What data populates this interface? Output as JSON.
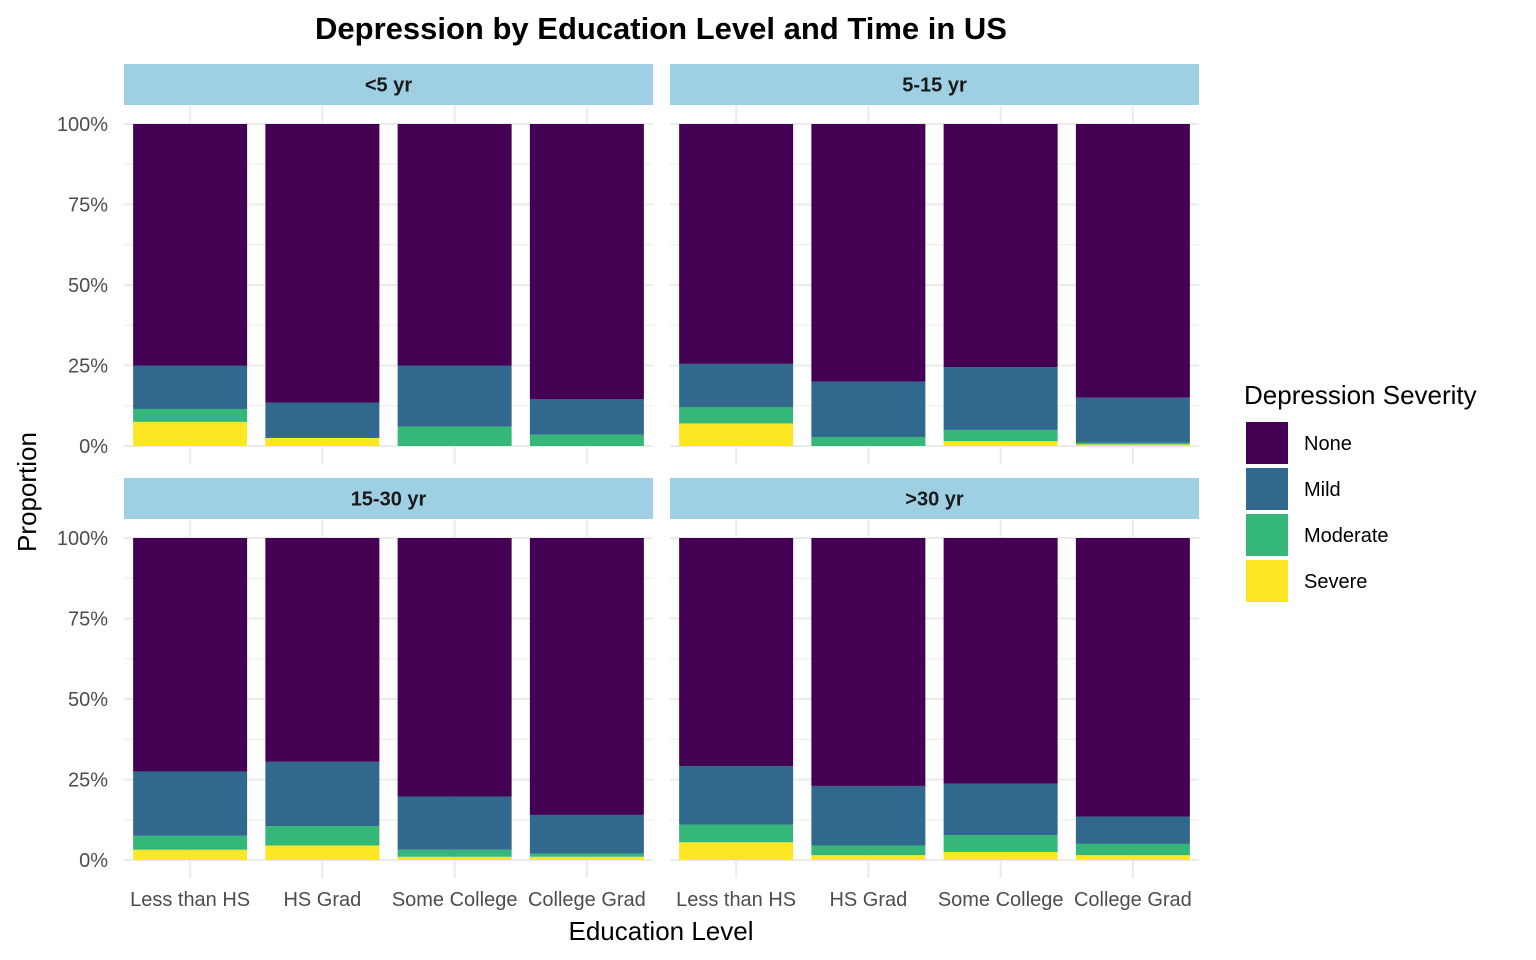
{
  "chart_data": {
    "type": "bar",
    "stacked": true,
    "normalized": true,
    "title": "Depression by Education Level and Time in US",
    "xlabel": "Education Level",
    "ylabel": "Proportion",
    "ylim": [
      0,
      1
    ],
    "y_ticks": [
      "0%",
      "25%",
      "50%",
      "75%",
      "100%"
    ],
    "grid": true,
    "categories": [
      "Less than HS",
      "HS Grad",
      "Some College",
      "College Grad"
    ],
    "legend": {
      "title": "Depression Severity",
      "placement": "right",
      "entries": [
        {
          "name": "None",
          "color": "#440154"
        },
        {
          "name": "Mild",
          "color": "#31688e"
        },
        {
          "name": "Moderate",
          "color": "#35b779"
        },
        {
          "name": "Severe",
          "color": "#fde725"
        }
      ]
    },
    "series_order_bottom_to_top": [
      "Severe",
      "Moderate",
      "Mild",
      "None"
    ],
    "panels": [
      {
        "label": "<5 yr",
        "series": [
          {
            "name": "Severe",
            "values": [
              0.075,
              0.025,
              0.0,
              0.0
            ]
          },
          {
            "name": "Moderate",
            "values": [
              0.04,
              0.0,
              0.06,
              0.035
            ]
          },
          {
            "name": "Mild",
            "values": [
              0.135,
              0.11,
              0.19,
              0.11
            ]
          },
          {
            "name": "None",
            "values": [
              0.75,
              0.865,
              0.75,
              0.855
            ]
          }
        ]
      },
      {
        "label": "5-15 yr",
        "series": [
          {
            "name": "Severe",
            "values": [
              0.07,
              0.0,
              0.015,
              0.005
            ]
          },
          {
            "name": "Moderate",
            "values": [
              0.05,
              0.028,
              0.035,
              0.005
            ]
          },
          {
            "name": "Mild",
            "values": [
              0.135,
              0.172,
              0.195,
              0.14
            ]
          },
          {
            "name": "None",
            "values": [
              0.745,
              0.8,
              0.755,
              0.85
            ]
          }
        ]
      },
      {
        "label": "15-30 yr",
        "series": [
          {
            "name": "Severe",
            "values": [
              0.032,
              0.045,
              0.01,
              0.01
            ]
          },
          {
            "name": "Moderate",
            "values": [
              0.043,
              0.06,
              0.022,
              0.01
            ]
          },
          {
            "name": "Mild",
            "values": [
              0.2,
              0.2,
              0.165,
              0.12
            ]
          },
          {
            "name": "None",
            "values": [
              0.725,
              0.695,
              0.803,
              0.86
            ]
          }
        ]
      },
      {
        "label": ">30 yr",
        "series": [
          {
            "name": "Severe",
            "values": [
              0.055,
              0.015,
              0.025,
              0.015
            ]
          },
          {
            "name": "Moderate",
            "values": [
              0.055,
              0.03,
              0.052,
              0.035
            ]
          },
          {
            "name": "Mild",
            "values": [
              0.182,
              0.185,
              0.16,
              0.085
            ]
          },
          {
            "name": "None",
            "values": [
              0.708,
              0.77,
              0.763,
              0.865
            ]
          }
        ]
      }
    ]
  }
}
